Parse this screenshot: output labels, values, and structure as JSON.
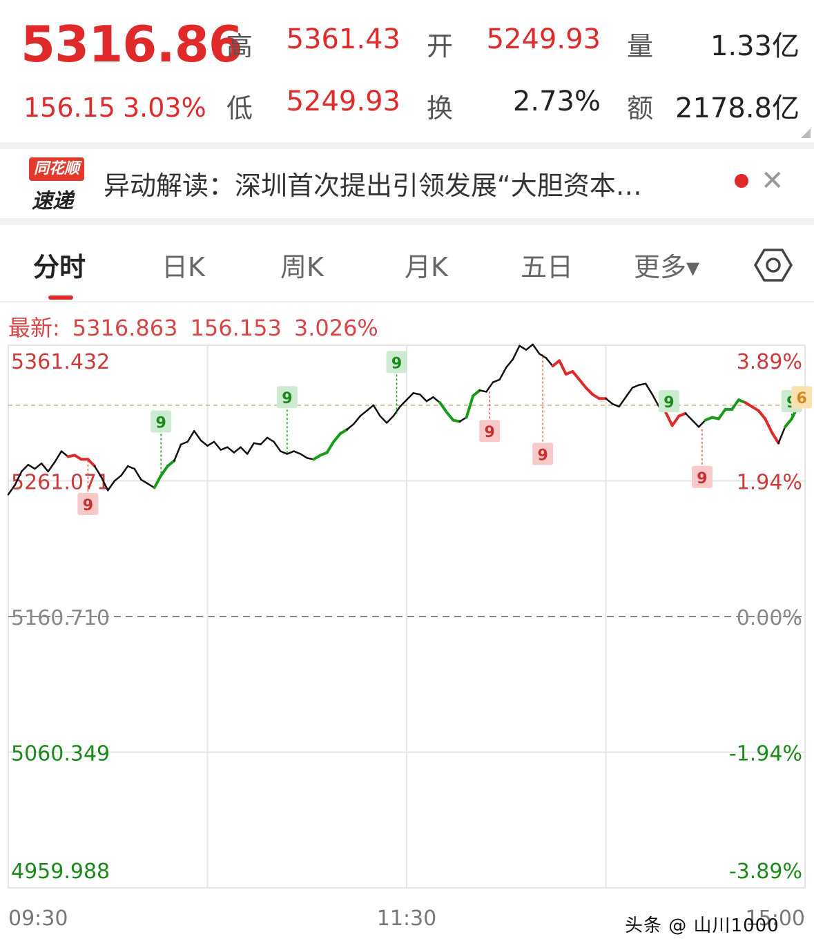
{
  "quote": {
    "price": "5316.86",
    "change": "156.15",
    "change_pct": "3.03%",
    "high_label": "高",
    "high": "5361.43",
    "open_label": "开",
    "open": "5249.93",
    "volume_label": "量",
    "volume": "1.33亿",
    "low_label": "低",
    "low": "5249.93",
    "turnover_label": "换",
    "turnover": "2.73%",
    "amount_label": "额",
    "amount": "2178.8亿"
  },
  "news": {
    "logo_top": "同花顺",
    "logo_bottom": "速递",
    "text": "异动解读：深圳首次提出引领发展“大胆资本…",
    "close_icon": "close-icon"
  },
  "tabs": [
    {
      "label": "分时",
      "active": true
    },
    {
      "label": "日K",
      "active": false
    },
    {
      "label": "周K",
      "active": false
    },
    {
      "label": "月K",
      "active": false
    },
    {
      "label": "五日",
      "active": false
    },
    {
      "label": "更多▾",
      "active": false
    }
  ],
  "settings_icon": "hexagon-settings-icon",
  "latest": {
    "label": "最新:",
    "price": "5316.863",
    "change": "156.153",
    "pct": "3.026%"
  },
  "watermark": "头条 @ 山川1000",
  "colors": {
    "up": "#e02a2a",
    "down": "#1a9a1a",
    "line": "#111111",
    "grid": "#e6e6e6"
  },
  "chart_data": {
    "type": "line",
    "title": "",
    "ylim": [
      4959.988,
      5361.432
    ],
    "prev_close": 5160.71,
    "y_ticks_left": [
      "5361.432",
      "5261.071",
      "5160.710",
      "5060.349",
      "4959.988"
    ],
    "y_ticks_right": [
      "3.89%",
      "1.94%",
      "0.00%",
      "-1.94%",
      "-3.89%"
    ],
    "x_ticks": [
      "09:30",
      "11:30",
      "15:00"
    ],
    "x_range": [
      0,
      240
    ],
    "series": [
      {
        "values": [
          [
            0,
            5251
          ],
          [
            2,
            5258
          ],
          [
            4,
            5268
          ],
          [
            6,
            5273
          ],
          [
            8,
            5270
          ],
          [
            10,
            5274
          ],
          [
            12,
            5268
          ],
          [
            14,
            5275
          ],
          [
            16,
            5283
          ],
          [
            18,
            5279
          ],
          [
            20,
            5280
          ],
          [
            22,
            5277
          ],
          [
            24,
            5277
          ],
          [
            26,
            5272
          ],
          [
            28,
            5264
          ],
          [
            30,
            5254
          ],
          [
            32,
            5261
          ],
          [
            34,
            5265
          ],
          [
            36,
            5272
          ],
          [
            38,
            5270
          ],
          [
            40,
            5262
          ],
          [
            42,
            5259
          ],
          [
            44,
            5256
          ],
          [
            46,
            5265
          ],
          [
            48,
            5272
          ],
          [
            50,
            5276
          ],
          [
            52,
            5288
          ],
          [
            54,
            5290
          ],
          [
            56,
            5298
          ],
          [
            58,
            5291
          ],
          [
            60,
            5287
          ],
          [
            62,
            5290
          ],
          [
            64,
            5284
          ],
          [
            66,
            5286
          ],
          [
            68,
            5282
          ],
          [
            70,
            5286
          ],
          [
            72,
            5281
          ],
          [
            74,
            5289
          ],
          [
            76,
            5288
          ],
          [
            78,
            5293
          ],
          [
            80,
            5290
          ],
          [
            82,
            5283
          ],
          [
            84,
            5281
          ],
          [
            86,
            5283
          ],
          [
            88,
            5281
          ],
          [
            90,
            5278
          ],
          [
            92,
            5277
          ],
          [
            94,
            5280
          ],
          [
            96,
            5282
          ],
          [
            98,
            5290
          ],
          [
            100,
            5296
          ],
          [
            102,
            5299
          ],
          [
            104,
            5303
          ],
          [
            106,
            5309
          ],
          [
            108,
            5313
          ],
          [
            110,
            5317
          ],
          [
            112,
            5309
          ],
          [
            114,
            5304
          ],
          [
            116,
            5309
          ],
          [
            118,
            5316
          ],
          [
            120,
            5321
          ],
          [
            122,
            5326
          ],
          [
            124,
            5325
          ],
          [
            126,
            5320
          ],
          [
            128,
            5323
          ],
          [
            130,
            5319
          ],
          [
            132,
            5312
          ],
          [
            134,
            5306
          ],
          [
            136,
            5305
          ],
          [
            138,
            5308
          ],
          [
            140,
            5324
          ],
          [
            142,
            5328
          ],
          [
            144,
            5327
          ],
          [
            146,
            5334
          ],
          [
            148,
            5336
          ],
          [
            150,
            5345
          ],
          [
            152,
            5351
          ],
          [
            154,
            5361
          ],
          [
            156,
            5358
          ],
          [
            158,
            5362
          ],
          [
            160,
            5355
          ],
          [
            162,
            5352
          ],
          [
            164,
            5346
          ],
          [
            166,
            5350
          ],
          [
            168,
            5340
          ],
          [
            170,
            5342
          ],
          [
            172,
            5336
          ],
          [
            174,
            5330
          ],
          [
            176,
            5325
          ],
          [
            178,
            5322
          ],
          [
            180,
            5322
          ],
          [
            182,
            5318
          ],
          [
            184,
            5316
          ],
          [
            186,
            5323
          ],
          [
            188,
            5330
          ],
          [
            190,
            5332
          ],
          [
            192,
            5333
          ],
          [
            194,
            5325
          ],
          [
            196,
            5316
          ],
          [
            198,
            5312
          ],
          [
            200,
            5302
          ],
          [
            202,
            5309
          ],
          [
            204,
            5311
          ],
          [
            206,
            5306
          ],
          [
            208,
            5301
          ],
          [
            210,
            5306
          ],
          [
            212,
            5308
          ],
          [
            214,
            5307
          ],
          [
            216,
            5314
          ],
          [
            218,
            5314
          ],
          [
            220,
            5321
          ],
          [
            222,
            5319
          ],
          [
            224,
            5316
          ],
          [
            226,
            5313
          ],
          [
            228,
            5307
          ],
          [
            230,
            5297
          ],
          [
            232,
            5289
          ],
          [
            234,
            5301
          ],
          [
            236,
            5307
          ],
          [
            238,
            5317
          ],
          [
            240,
            5317
          ]
        ]
      }
    ],
    "signals": [
      {
        "x": 24,
        "y": 5244,
        "label": "9",
        "kind": "sell"
      },
      {
        "x": 46,
        "y": 5305,
        "label": "9",
        "kind": "buy"
      },
      {
        "x": 84,
        "y": 5323,
        "label": "9",
        "kind": "buy"
      },
      {
        "x": 117,
        "y": 5349,
        "label": "9",
        "kind": "buy"
      },
      {
        "x": 145,
        "y": 5298,
        "label": "9",
        "kind": "sell"
      },
      {
        "x": 161,
        "y": 5281,
        "label": "9",
        "kind": "sell"
      },
      {
        "x": 199,
        "y": 5320,
        "label": "9",
        "kind": "buy"
      },
      {
        "x": 209,
        "y": 5264,
        "label": "9",
        "kind": "sell"
      },
      {
        "x": 236,
        "y": 5320,
        "label": "9",
        "kind": "buy"
      },
      {
        "x": 239,
        "y": 5323,
        "label": "6",
        "kind": "pending"
      }
    ]
  }
}
